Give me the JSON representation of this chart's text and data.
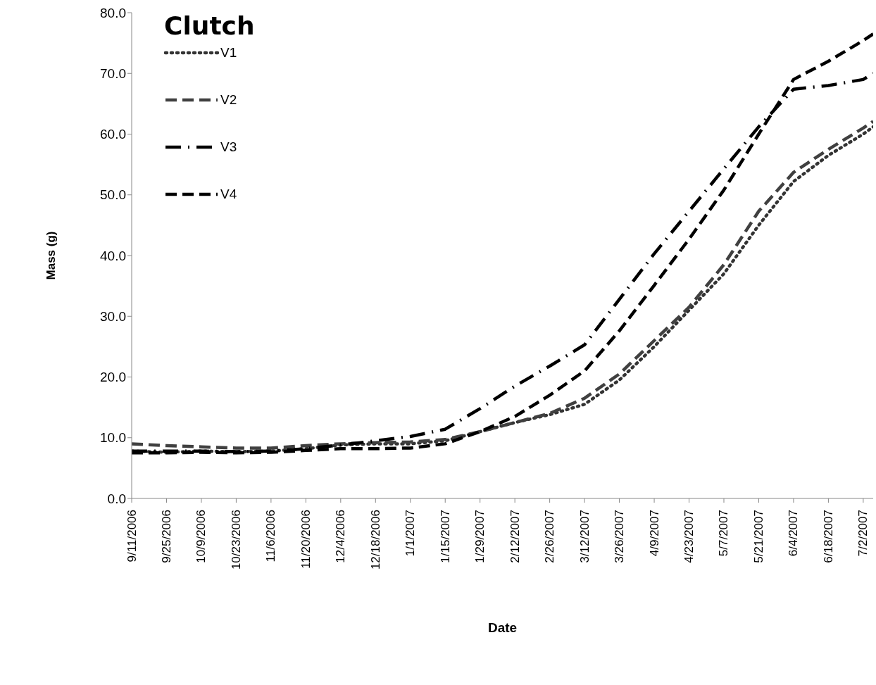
{
  "chart_data": {
    "type": "line",
    "xlabel": "Date",
    "ylabel": "Mass (g)",
    "legend_title": "Clutch",
    "legend": "top left",
    "grid": false,
    "marker": "none",
    "x": [
      "2006-09-11",
      "2006-09-25",
      "2006-10-09",
      "2006-10-23",
      "2006-11-06",
      "2006-11-20",
      "2006-12-04",
      "2006-12-18",
      "2007-01-01",
      "2007-01-15",
      "2007-01-29",
      "2007-02-12",
      "2007-02-26",
      "2007-03-12",
      "2007-03-26",
      "2007-04-09",
      "2007-04-23",
      "2007-05-07",
      "2007-05-21",
      "2007-06-04",
      "2007-06-18",
      "2007-07-02",
      "2007-07-06"
    ],
    "xlim": [
      "2006-09-11",
      "2007-07-06"
    ],
    "xticks": [
      {
        "value": "2006-09-11",
        "label": "9/11/2006"
      },
      {
        "value": "2006-09-25",
        "label": "9/25/2006"
      },
      {
        "value": "2006-10-09",
        "label": "10/9/2006"
      },
      {
        "value": "2006-10-23",
        "label": "10/23/2006"
      },
      {
        "value": "2006-11-06",
        "label": "11/6/2006"
      },
      {
        "value": "2006-11-20",
        "label": "11/20/2006"
      },
      {
        "value": "2006-12-04",
        "label": "12/4/2006"
      },
      {
        "value": "2006-12-18",
        "label": "12/18/2006"
      },
      {
        "value": "2007-01-01",
        "label": "1/1/2007"
      },
      {
        "value": "2007-01-15",
        "label": "1/15/2007"
      },
      {
        "value": "2007-01-29",
        "label": "1/29/2007"
      },
      {
        "value": "2007-02-12",
        "label": "2/12/2007"
      },
      {
        "value": "2007-02-26",
        "label": "2/26/2007"
      },
      {
        "value": "2007-03-12",
        "label": "3/12/2007"
      },
      {
        "value": "2007-03-26",
        "label": "3/26/2007"
      },
      {
        "value": "2007-04-09",
        "label": "4/9/2007"
      },
      {
        "value": "2007-04-23",
        "label": "4/23/2007"
      },
      {
        "value": "2007-05-07",
        "label": "5/7/2007"
      },
      {
        "value": "2007-05-21",
        "label": "5/21/2007"
      },
      {
        "value": "2007-06-04",
        "label": "6/4/2007"
      },
      {
        "value": "2007-06-18",
        "label": "6/18/2007"
      },
      {
        "value": "2007-07-02",
        "label": "7/2/2007"
      }
    ],
    "ylim": [
      0,
      80
    ],
    "yticks": [
      {
        "value": 0,
        "label": "0.0"
      },
      {
        "value": 10,
        "label": "10.0"
      },
      {
        "value": 20,
        "label": "20.0"
      },
      {
        "value": 30,
        "label": "30.0"
      },
      {
        "value": 40,
        "label": "40.0"
      },
      {
        "value": 50,
        "label": "50.0"
      },
      {
        "value": 60,
        "label": "60.0"
      },
      {
        "value": 70,
        "label": "70.0"
      },
      {
        "value": 80,
        "label": "80.0"
      }
    ],
    "series": [
      {
        "name": "V1",
        "color": "#333333",
        "line_style": "dotted",
        "values": [
          7.8,
          7.6,
          7.8,
          7.7,
          7.8,
          8.2,
          8.8,
          9.0,
          9.0,
          9.5,
          11.0,
          12.5,
          13.8,
          15.5,
          19.5,
          25.0,
          31.0,
          37.0,
          45.0,
          52.2,
          56.5,
          60.0,
          61.2
        ]
      },
      {
        "name": "V2",
        "color": "#404040",
        "line_style": "dashed",
        "values": [
          9.0,
          8.7,
          8.5,
          8.3,
          8.3,
          8.7,
          9.0,
          9.2,
          9.3,
          9.7,
          11.0,
          12.5,
          14.0,
          16.5,
          20.5,
          26.0,
          31.5,
          38.5,
          47.3,
          53.7,
          57.5,
          61.0,
          62.1
        ]
      },
      {
        "name": "V3",
        "color": "#000000",
        "line_style": "dashdot",
        "values": [
          7.8,
          7.8,
          7.8,
          7.7,
          7.8,
          8.2,
          8.8,
          9.5,
          10.2,
          11.4,
          14.8,
          18.5,
          21.8,
          25.3,
          32.8,
          40.3,
          47.3,
          54.3,
          61.2,
          67.4,
          68.0,
          69.0,
          70.0
        ]
      },
      {
        "name": "V4",
        "color": "#000000",
        "line_style": "dashed",
        "values": [
          7.5,
          7.5,
          7.6,
          7.5,
          7.6,
          7.9,
          8.2,
          8.2,
          8.3,
          9.0,
          11.0,
          13.5,
          17.0,
          21.0,
          27.6,
          35.1,
          42.7,
          50.8,
          60.0,
          69.0,
          72.0,
          75.4,
          76.5
        ]
      }
    ]
  }
}
